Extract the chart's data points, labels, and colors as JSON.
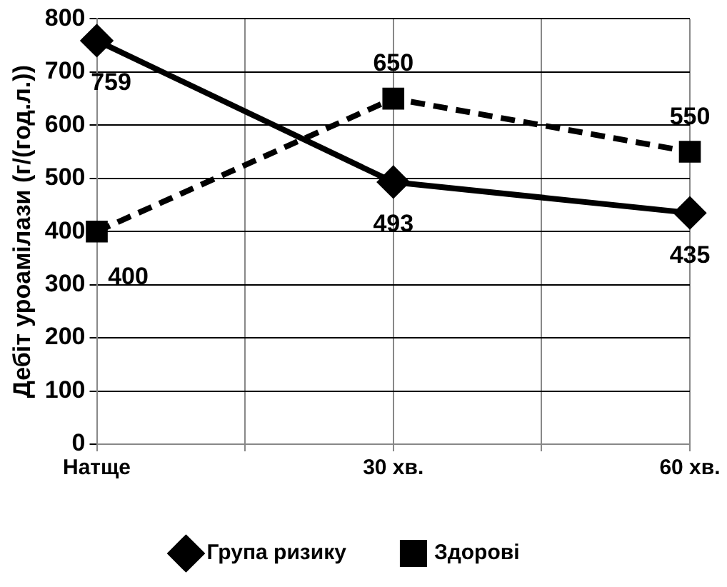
{
  "chart_data": {
    "type": "line",
    "ylabel": "Дебіт уроамілази (г/(год.л.))",
    "x": [
      0,
      30,
      60
    ],
    "xlim": [
      0,
      60
    ],
    "xticks": [
      {
        "value": 0,
        "label": "Натще"
      },
      {
        "value": 15,
        "label": null
      },
      {
        "value": 30,
        "label": "30 хв."
      },
      {
        "value": 45,
        "label": null
      },
      {
        "value": 60,
        "label": "60 хв."
      }
    ],
    "ylim": [
      0,
      800
    ],
    "yticks": [
      0,
      100,
      200,
      300,
      400,
      500,
      600,
      700,
      800
    ],
    "series": [
      {
        "name": "Група ризику",
        "color": "#000000",
        "values": [
          759,
          493,
          435
        ],
        "marker": "diamond",
        "line_style": "solid"
      },
      {
        "name": "Здорові",
        "color": "#000000",
        "values": [
          400,
          650,
          550
        ],
        "marker": "square",
        "line_style": "dashed"
      }
    ],
    "data_labels": true,
    "grid": true,
    "legend": "bottom"
  }
}
